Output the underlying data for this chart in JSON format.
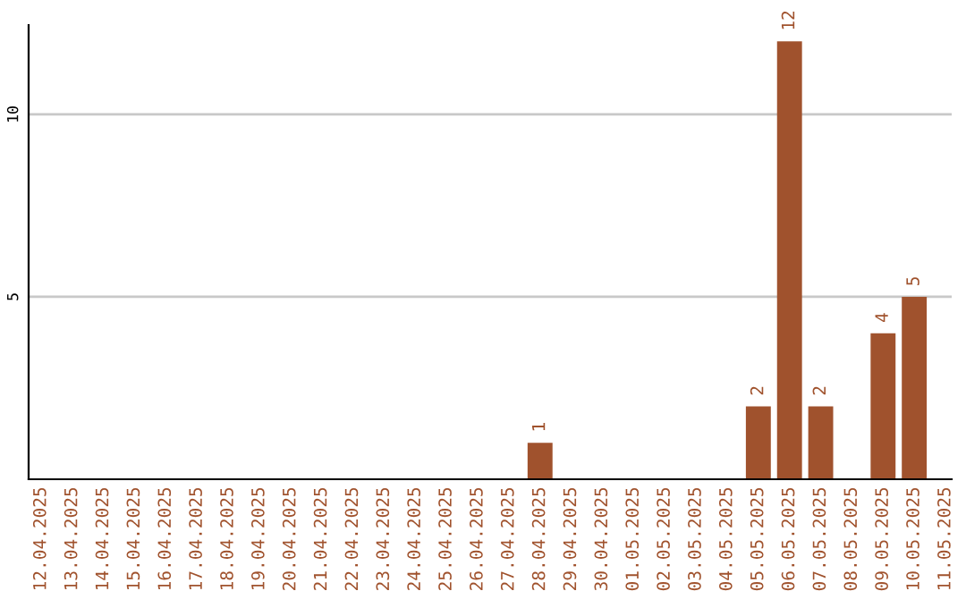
{
  "chart_data": {
    "type": "bar",
    "categories": [
      "12.04.2025",
      "13.04.2025",
      "14.04.2025",
      "15.04.2025",
      "16.04.2025",
      "17.04.2025",
      "18.04.2025",
      "19.04.2025",
      "20.04.2025",
      "21.04.2025",
      "22.04.2025",
      "23.04.2025",
      "24.04.2025",
      "25.04.2025",
      "26.04.2025",
      "27.04.2025",
      "28.04.2025",
      "29.04.2025",
      "30.04.2025",
      "01.05.2025",
      "02.05.2025",
      "03.05.2025",
      "04.05.2025",
      "05.05.2025",
      "06.05.2025",
      "07.05.2025",
      "08.05.2025",
      "09.05.2025",
      "10.05.2025",
      "11.05.2025"
    ],
    "values": [
      0,
      0,
      0,
      0,
      0,
      0,
      0,
      0,
      0,
      0,
      0,
      0,
      0,
      0,
      0,
      0,
      1,
      0,
      0,
      0,
      0,
      0,
      0,
      2,
      12,
      2,
      0,
      4,
      5,
      0
    ],
    "value_labels": [
      null,
      null,
      null,
      null,
      null,
      null,
      null,
      null,
      null,
      null,
      null,
      null,
      null,
      null,
      null,
      null,
      "1",
      null,
      null,
      null,
      null,
      null,
      null,
      "2",
      "12",
      "2",
      null,
      "4",
      "5",
      null
    ],
    "color": "#a0522d",
    "ylim": [
      0,
      12.45
    ],
    "yticks": [
      5,
      10
    ],
    "grid": "y",
    "legend": false
  }
}
